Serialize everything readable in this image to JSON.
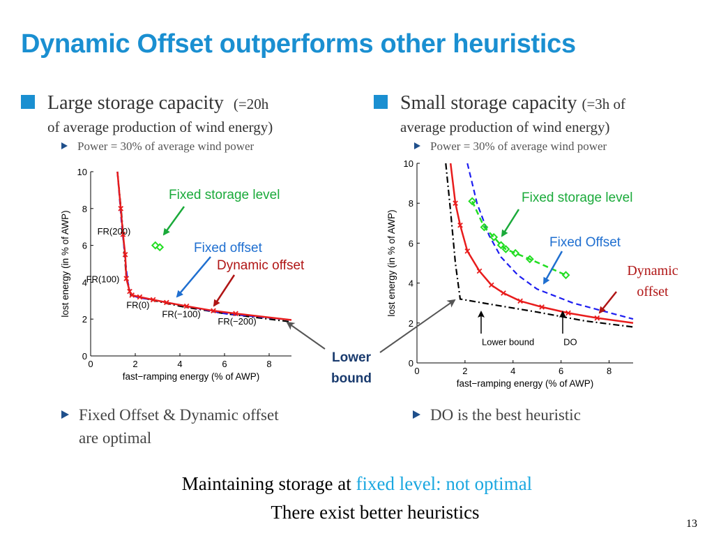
{
  "title": "Dynamic Offset outperforms other heuristics",
  "left": {
    "heading_main": "Large storage capacity",
    "heading_paren": "(=20h",
    "heading_sub": "of average production of wind energy)",
    "sub_bullet": "Power = 30% of average wind power",
    "bottom_bullet_line1": "Fixed Offset & Dynamic offset",
    "bottom_bullet_line2": "are optimal"
  },
  "right": {
    "heading_main": "Small storage capacity",
    "heading_paren": "(=3h of",
    "heading_sub": "average production of wind energy)",
    "sub_bullet": "Power = 30% of average wind power",
    "bottom_bullet": "DO is the best heuristic"
  },
  "center_label_line1": "Lower",
  "center_label_line2": "bound",
  "conclusion": {
    "line1_prefix": "Maintaining storage at ",
    "line1_highlight": "fixed level: not optimal",
    "line2": "There exist better heuristics"
  },
  "page_number": "13",
  "colors": {
    "accent": "#1a8fd1",
    "dynamic": "#e81c1c",
    "fixed_offset": "#1d1df0",
    "fixed_storage": "#22dd22",
    "lower_bound": "#000000",
    "annot_green": "#1aaa3a",
    "annot_blue": "#1f6fd0",
    "annot_red": "#b01515",
    "highlight": "#1aa7e0"
  },
  "chart_data": [
    {
      "type": "line",
      "title": "",
      "xlabel": "fast−ramping energy (% of AWP)",
      "ylabel": "lost energy (in % of AWP)",
      "xlim": [
        0,
        9
      ],
      "ylim": [
        0,
        10
      ],
      "xticks": [
        0,
        2,
        4,
        6,
        8
      ],
      "yticks": [
        0,
        2,
        4,
        6,
        8,
        10
      ],
      "series": [
        {
          "name": "Lower bound",
          "style": "dashdot",
          "color": "#000000",
          "x": [
            1.2,
            1.4,
            1.6,
            1.8,
            2.5,
            4,
            6,
            9
          ],
          "y": [
            10,
            7.5,
            4.2,
            3.3,
            3.1,
            2.7,
            2.3,
            1.85
          ]
        },
        {
          "name": "Fixed offset",
          "style": "dashed",
          "color": "#1d1df0",
          "x": [
            1.2,
            1.4,
            1.55,
            1.65,
            1.8,
            2.2,
            3,
            4.5,
            6,
            9
          ],
          "y": [
            10,
            7,
            5.3,
            4.1,
            3.3,
            3.15,
            3.0,
            2.65,
            2.3,
            1.95
          ]
        },
        {
          "name": "Dynamic offset",
          "style": "solid",
          "color": "#e81c1c",
          "marker": "x",
          "x": [
            1.2,
            1.35,
            1.45,
            1.55,
            1.6,
            1.75,
            1.85,
            2.2,
            2.8,
            3.4,
            4.3,
            5.5,
            6.5,
            9
          ],
          "y": [
            10,
            8,
            6.6,
            5.5,
            4.2,
            3.5,
            3.3,
            3.2,
            3.05,
            2.9,
            2.7,
            2.45,
            2.3,
            1.95
          ]
        },
        {
          "name": "Fixed storage level",
          "style": "markers",
          "color": "#22dd22",
          "marker": "diamond",
          "x": [
            2.9,
            3.1
          ],
          "y": [
            6.0,
            5.9
          ]
        }
      ],
      "annotations": [
        {
          "text": "FR(200)",
          "x": 0.3,
          "y": 6.6
        },
        {
          "text": "FR(100)",
          "x": -0.2,
          "y": 4.0
        },
        {
          "text": "FR(0)",
          "x": 1.6,
          "y": 2.6
        },
        {
          "text": "FR(−100)",
          "x": 3.2,
          "y": 2.1
        },
        {
          "text": "FR(−200)",
          "x": 5.7,
          "y": 1.7
        },
        {
          "text": "Fixed storage level",
          "color": "#1aaa3a"
        },
        {
          "text": "Fixed offset",
          "color": "#1f6fd0"
        },
        {
          "text": "Dynamic offset",
          "color": "#b01515"
        }
      ]
    },
    {
      "type": "line",
      "title": "",
      "xlabel": "fast−ramping energy (% of AWP)",
      "ylabel": "lost energy (in % of AWP)",
      "xlim": [
        0,
        9
      ],
      "ylim": [
        0,
        10
      ],
      "xticks": [
        0,
        2,
        4,
        6,
        8
      ],
      "yticks": [
        0,
        2,
        4,
        6,
        8,
        10
      ],
      "series": [
        {
          "name": "Lower bound",
          "style": "dashdot",
          "color": "#000000",
          "x": [
            1.2,
            1.4,
            1.6,
            1.8,
            3,
            5,
            7,
            9
          ],
          "y": [
            10,
            7.6,
            5.0,
            3.2,
            2.95,
            2.55,
            2.1,
            1.8
          ]
        },
        {
          "name": "Fixed offset",
          "style": "dashed",
          "color": "#1d1df0",
          "x": [
            2.1,
            2.5,
            3,
            3.5,
            4.2,
            5,
            6.5,
            9
          ],
          "y": [
            10,
            8,
            6.4,
            5.3,
            4.4,
            3.7,
            3.0,
            2.2
          ]
        },
        {
          "name": "Dynamic offset",
          "style": "solid",
          "color": "#e81c1c",
          "marker": "x",
          "x": [
            1.4,
            1.6,
            1.8,
            2.1,
            2.6,
            3.1,
            3.6,
            4.3,
            5.2,
            6.3,
            7.5,
            9
          ],
          "y": [
            10,
            8.0,
            6.9,
            5.6,
            4.6,
            3.9,
            3.5,
            3.1,
            2.8,
            2.5,
            2.25,
            2.0
          ]
        },
        {
          "name": "Fixed storage level",
          "style": "dashed-markers",
          "color": "#22dd22",
          "marker": "diamond",
          "x": [
            2.3,
            2.8,
            3.2,
            3.5,
            3.7,
            4.1,
            4.7,
            6.2
          ],
          "y": [
            8.1,
            6.8,
            6.3,
            5.9,
            5.7,
            5.5,
            5.2,
            4.4
          ]
        }
      ],
      "annotations": [
        {
          "text": "Lower bound",
          "x": 2.7,
          "y": 0.9
        },
        {
          "text": "DO",
          "x": 6.1,
          "y": 0.9
        },
        {
          "text": "Fixed storage level",
          "color": "#1aaa3a"
        },
        {
          "text": "Fixed Offset",
          "color": "#1f6fd0"
        },
        {
          "text": "Dynamic offset",
          "color": "#b01515"
        }
      ]
    }
  ]
}
